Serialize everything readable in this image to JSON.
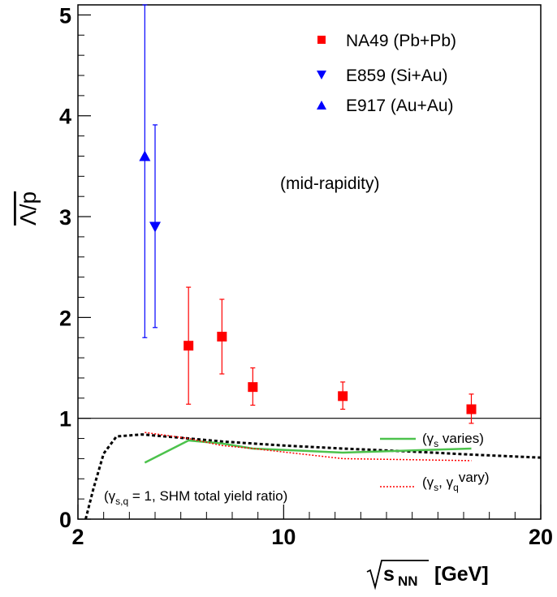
{
  "chart_data": {
    "type": "scatter",
    "xlabel": "[GeV]",
    "xlabel_sqrt": "s",
    "xlabel_sub": "NN",
    "ylabel": "Λ/p",
    "xlim": [
      2,
      20
    ],
    "ylim": [
      0,
      5.1
    ],
    "x_ticks": [
      {
        "value": 2,
        "label": "2"
      },
      {
        "value": 10,
        "label": "10"
      },
      {
        "value": 20,
        "label": "20"
      }
    ],
    "x_minor_ticks": [
      3,
      4,
      5,
      6,
      7,
      8,
      9,
      11,
      12,
      13,
      14,
      15,
      16,
      17,
      18,
      19
    ],
    "y_ticks": [
      {
        "value": 0,
        "label": "0"
      },
      {
        "value": 1,
        "label": "1"
      },
      {
        "value": 2,
        "label": "2"
      },
      {
        "value": 3,
        "label": "3"
      },
      {
        "value": 4,
        "label": "4"
      },
      {
        "value": 5,
        "label": "5"
      }
    ],
    "reference_line_y": 1,
    "annotation": "(mid-rapidity)",
    "series": [
      {
        "name": "NA49 (Pb+Pb)",
        "marker": "square",
        "color": "#ff0000",
        "points": [
          {
            "x": 6.3,
            "y": 1.72,
            "err": [
              1.14,
              2.3
            ]
          },
          {
            "x": 7.6,
            "y": 1.81,
            "err": [
              1.44,
              2.18
            ]
          },
          {
            "x": 8.8,
            "y": 1.31,
            "err": [
              1.13,
              1.5
            ]
          },
          {
            "x": 12.3,
            "y": 1.22,
            "err": [
              1.09,
              1.36
            ]
          },
          {
            "x": 17.3,
            "y": 1.09,
            "err": [
              0.95,
              1.24
            ]
          }
        ]
      },
      {
        "name": "E859 (Si+Au)",
        "marker": "triangle-down",
        "color": "#0000ff",
        "points": [
          {
            "x": 5.0,
            "y": 2.9,
            "err": [
              1.9,
              3.91
            ]
          }
        ]
      },
      {
        "name": "E917 (Au+Au)",
        "marker": "triangle-up",
        "color": "#0000ff",
        "points": [
          {
            "x": 4.6,
            "y": 3.6,
            "err": [
              1.8,
              5.1
            ]
          }
        ]
      }
    ],
    "model_curves": [
      {
        "label": "(γs,q = 1, SHM total yield ratio)",
        "style": "dotted-thick",
        "color": "#000000",
        "points": [
          [
            2.3,
            0.0
          ],
          [
            2.6,
            0.3
          ],
          [
            3.0,
            0.65
          ],
          [
            3.5,
            0.82
          ],
          [
            4.5,
            0.84
          ],
          [
            6.3,
            0.8
          ],
          [
            7.6,
            0.77
          ],
          [
            10,
            0.73
          ],
          [
            12.3,
            0.7
          ],
          [
            15,
            0.67
          ],
          [
            17.3,
            0.64
          ],
          [
            20,
            0.61
          ]
        ]
      },
      {
        "label": "(γs varies)",
        "style": "solid",
        "color": "#4cc24c",
        "points": [
          [
            4.6,
            0.56
          ],
          [
            6.3,
            0.78
          ],
          [
            7.6,
            0.75
          ],
          [
            8.8,
            0.7
          ],
          [
            12.3,
            0.66
          ],
          [
            17.3,
            0.7
          ]
        ]
      },
      {
        "label": "(γs, γq vary)",
        "style": "dotted",
        "color": "#ff0000",
        "points": [
          [
            4.6,
            0.86
          ],
          [
            6.3,
            0.8
          ],
          [
            7.6,
            0.73
          ],
          [
            8.8,
            0.7
          ],
          [
            12.3,
            0.6
          ],
          [
            17.3,
            0.58
          ]
        ]
      }
    ],
    "model_labels": {
      "shm_prefix": "(γ",
      "shm_sub": "s,q",
      "shm_suffix": " = 1, SHM total yield ratio)",
      "gs_prefix": "(γ",
      "gs_sub": "s",
      "gs_suffix": " varies)",
      "gsq_prefix": "(γ",
      "gsq_sub1": "s",
      "gsq_mid": ", γ",
      "gsq_sub2": "q",
      "gsq_suffix": "vary)"
    }
  }
}
